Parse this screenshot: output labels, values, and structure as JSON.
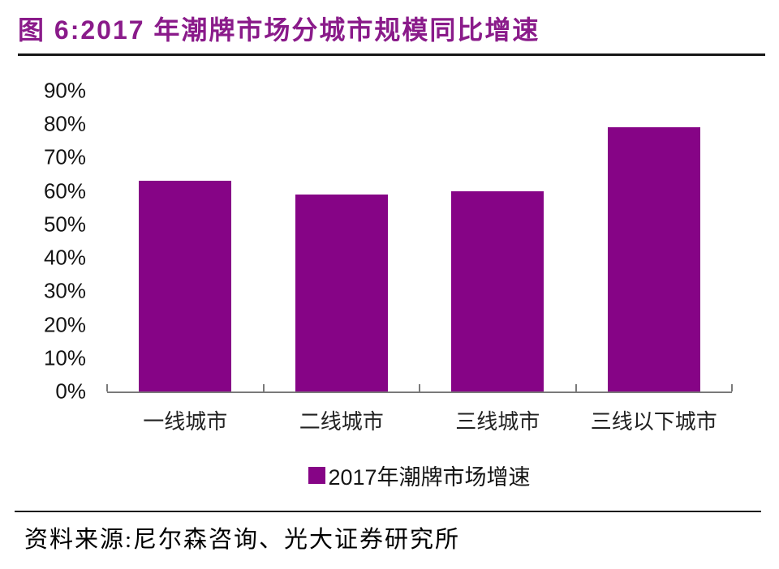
{
  "header": {
    "title": "图 6:2017 年潮牌市场分城市规模同比增速"
  },
  "legend": {
    "label": "2017年潮牌市场增速"
  },
  "footer": {
    "source": "资料来源:尼尔森咨询、光大证券研究所"
  },
  "colors": {
    "bar": "#860486",
    "title_text": "#8a1b8a",
    "axis_line": "#7a7a7a",
    "rule": "#1a1a1a"
  },
  "chart_data": {
    "type": "bar",
    "title": "2017 年潮牌市场分城市规模同比增速",
    "figure_label": "图 6",
    "categories": [
      "一线城市",
      "二线城市",
      "三线城市",
      "三线以下城市"
    ],
    "series": [
      {
        "name": "2017年潮牌市场增速",
        "values": [
          63,
          59,
          60,
          79
        ]
      }
    ],
    "value_unit": "%",
    "xlabel": "",
    "ylabel": "",
    "ylim": [
      0,
      90
    ],
    "ytick_step": 10,
    "ytick_format": "percent",
    "grid": false,
    "legend_position": "bottom",
    "source": "尼尔森咨询、光大证券研究所"
  }
}
